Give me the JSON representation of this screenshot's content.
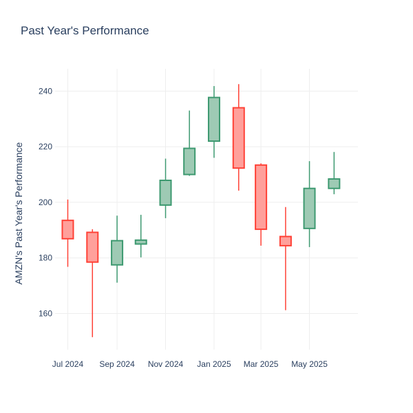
{
  "chart_data": {
    "type": "candlestick",
    "title": "Past Year's Performance",
    "xlabel": "",
    "ylabel": "AMZN's Past Year's Performance",
    "ylim": [
      147,
      248
    ],
    "xlim": [
      "2024-06-15",
      "2025-07-01"
    ],
    "grid": true,
    "legend": "none",
    "colors": {
      "increasing_line": "#3d9970",
      "increasing_fill": "#9ecab4",
      "decreasing_line": "#ff4136",
      "decreasing_fill": "#ffa09b",
      "text": "#2a3f5f",
      "grid": "#eeeeee"
    },
    "x_ticks": [
      {
        "date": "2024-07-01",
        "label": "Jul 2024"
      },
      {
        "date": "2024-09-01",
        "label": "Sep 2024"
      },
      {
        "date": "2024-11-01",
        "label": "Nov 2024"
      },
      {
        "date": "2025-01-01",
        "label": "Jan 2025"
      },
      {
        "date": "2025-03-01",
        "label": "Mar 2025"
      },
      {
        "date": "2025-05-01",
        "label": "May 2025"
      }
    ],
    "y_ticks": [
      {
        "value": 160,
        "label": "160"
      },
      {
        "value": 180,
        "label": "180"
      },
      {
        "value": 200,
        "label": "200"
      },
      {
        "value": 220,
        "label": "220"
      },
      {
        "value": 240,
        "label": "240"
      }
    ],
    "candles": [
      {
        "date": "2024-07-01",
        "open": 193.5,
        "high": 201.0,
        "low": 176.8,
        "close": 186.9
      },
      {
        "date": "2024-08-01",
        "open": 189.2,
        "high": 190.3,
        "low": 151.5,
        "close": 178.5
      },
      {
        "date": "2024-09-01",
        "open": 177.5,
        "high": 195.2,
        "low": 171.1,
        "close": 186.2
      },
      {
        "date": "2024-10-01",
        "open": 185.0,
        "high": 195.5,
        "low": 180.2,
        "close": 186.4
      },
      {
        "date": "2024-11-01",
        "open": 199.0,
        "high": 215.7,
        "low": 194.3,
        "close": 207.9
      },
      {
        "date": "2024-12-01",
        "open": 210.0,
        "high": 233.0,
        "low": 209.5,
        "close": 219.4
      },
      {
        "date": "2025-01-01",
        "open": 222.0,
        "high": 241.8,
        "low": 216.0,
        "close": 237.7
      },
      {
        "date": "2025-02-01",
        "open": 234.0,
        "high": 242.5,
        "low": 204.2,
        "close": 212.3
      },
      {
        "date": "2025-03-01",
        "open": 213.4,
        "high": 214.0,
        "low": 184.4,
        "close": 190.3
      },
      {
        "date": "2025-04-01",
        "open": 187.7,
        "high": 198.3,
        "low": 161.2,
        "close": 184.4
      },
      {
        "date": "2025-05-01",
        "open": 190.6,
        "high": 214.8,
        "low": 183.9,
        "close": 205.0
      },
      {
        "date": "2025-06-01",
        "open": 205.0,
        "high": 218.1,
        "low": 202.9,
        "close": 208.4
      }
    ]
  }
}
